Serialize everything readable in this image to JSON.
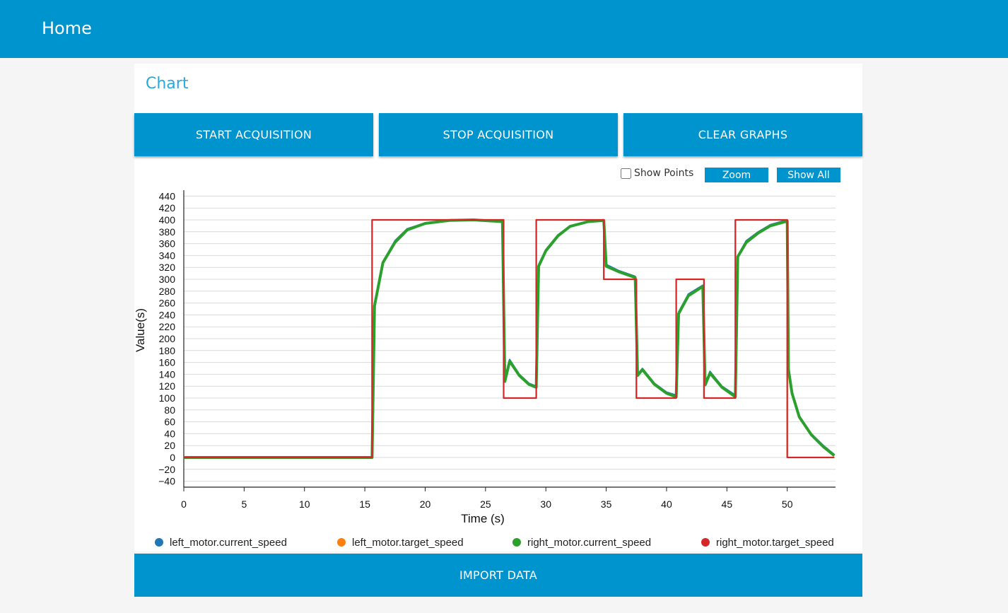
{
  "header": {
    "title": "Home"
  },
  "card": {
    "title": "Chart"
  },
  "toolbar": {
    "start_label": "START ACQUISITION",
    "stop_label": "STOP ACQUISITION",
    "clear_label": "CLEAR GRAPHS"
  },
  "controls": {
    "show_points_label": "Show Points",
    "show_points_checked": false,
    "zoom_label": "Zoom",
    "show_all_label": "Show All"
  },
  "import_label": "IMPORT DATA",
  "chart_data": {
    "type": "line",
    "xlabel": "Time (s)",
    "ylabel": "Value(s)",
    "xlim": [
      0,
      54
    ],
    "ylim": [
      -50,
      450
    ],
    "xticks": [
      0,
      5,
      10,
      15,
      20,
      25,
      30,
      35,
      40,
      45,
      50
    ],
    "yticks": [
      -40,
      -20,
      0,
      20,
      40,
      60,
      80,
      100,
      120,
      140,
      160,
      180,
      200,
      220,
      240,
      260,
      280,
      300,
      320,
      340,
      360,
      380,
      400,
      420,
      440
    ],
    "grid": "horizontal",
    "legend_position": "bottom",
    "series": [
      {
        "name": "left_motor.current_speed",
        "color": "#1f77b4",
        "x": [
          0,
          15.6,
          15.8,
          16.5,
          17.5,
          18.5,
          20,
          22,
          24,
          26.4,
          26.6,
          27,
          27.8,
          28.6,
          29.2,
          29.4,
          30,
          31,
          32,
          33.5,
          34.8,
          35,
          36,
          37.4,
          37.6,
          38,
          39,
          40,
          40.8,
          41,
          41.8,
          43,
          43.2,
          43.6,
          44.6,
          45.7,
          45.9,
          46.6,
          47.6,
          48.6,
          50,
          50.1,
          50.4,
          51,
          52,
          53,
          53.9
        ],
        "values": [
          0,
          0,
          260,
          330,
          365,
          385,
          395,
          400,
          400,
          398,
          130,
          165,
          140,
          125,
          120,
          325,
          350,
          375,
          390,
          398,
          400,
          325,
          315,
          305,
          140,
          150,
          125,
          110,
          105,
          245,
          275,
          290,
          125,
          145,
          120,
          105,
          340,
          365,
          380,
          392,
          400,
          150,
          110,
          70,
          40,
          20,
          5
        ]
      },
      {
        "name": "left_motor.target_speed",
        "color": "#ff7f0e",
        "x": [
          0,
          15.6,
          15.6,
          26.5,
          26.5,
          29.2,
          29.2,
          34.8,
          34.8,
          37.5,
          37.5,
          40.8,
          40.8,
          43.1,
          43.1,
          45.7,
          45.7,
          50,
          50,
          53.9
        ],
        "values": [
          0,
          0,
          400,
          400,
          100,
          100,
          400,
          400,
          300,
          300,
          100,
          100,
          300,
          300,
          100,
          100,
          400,
          400,
          0,
          0
        ]
      },
      {
        "name": "right_motor.current_speed",
        "color": "#2ca02c",
        "x": [
          0,
          15.6,
          15.8,
          16.5,
          17.5,
          18.5,
          20,
          22,
          24,
          26.4,
          26.6,
          27,
          27.8,
          28.6,
          29.2,
          29.4,
          30,
          31,
          32,
          33.5,
          34.8,
          35,
          36,
          37.4,
          37.6,
          38,
          39,
          40,
          40.8,
          41,
          41.8,
          43,
          43.2,
          43.6,
          44.6,
          45.7,
          45.9,
          46.6,
          47.6,
          48.6,
          50,
          50.1,
          50.4,
          51,
          52,
          53,
          53.9
        ],
        "values": [
          0,
          0,
          255,
          328,
          362,
          383,
          394,
          399,
          400,
          397,
          128,
          162,
          138,
          123,
          118,
          322,
          348,
          373,
          389,
          397,
          399,
          322,
          313,
          303,
          138,
          148,
          123,
          108,
          102,
          242,
          272,
          288,
          122,
          142,
          118,
          102,
          338,
          362,
          378,
          390,
          398,
          148,
          108,
          68,
          38,
          18,
          3
        ]
      },
      {
        "name": "right_motor.target_speed",
        "color": "#d62728",
        "x": [
          0,
          15.6,
          15.6,
          26.5,
          26.5,
          29.2,
          29.2,
          34.8,
          34.8,
          37.5,
          37.5,
          40.8,
          40.8,
          43.1,
          43.1,
          45.7,
          45.7,
          50,
          50,
          53.9
        ],
        "values": [
          0,
          0,
          400,
          400,
          100,
          100,
          400,
          400,
          300,
          300,
          100,
          100,
          300,
          300,
          100,
          100,
          400,
          400,
          0,
          0
        ]
      }
    ]
  }
}
